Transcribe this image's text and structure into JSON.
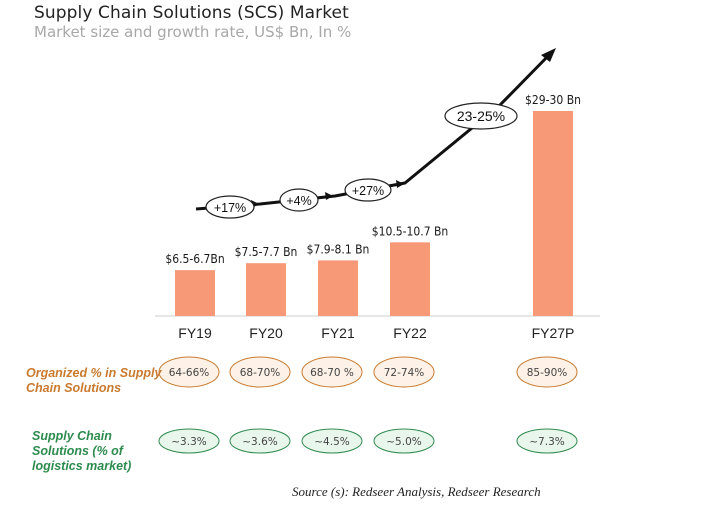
{
  "header": {
    "title": "Supply Chain Solutions (SCS) Market",
    "subtitle": "Market size and growth rate, US$ Bn, In %"
  },
  "chart_data": {
    "type": "bar",
    "categories": [
      "FY19",
      "FY20",
      "FY21",
      "FY22",
      "FY27P"
    ],
    "values": [
      6.6,
      7.6,
      8.0,
      10.6,
      29.5
    ],
    "value_labels": [
      "$6.5-6.7Bn",
      "$7.5-7.7 Bn",
      "$7.9-8.1 Bn",
      "$10.5-10.7 Bn",
      "$29-30 Bn"
    ],
    "growth_labels": [
      "+17%",
      "+4%",
      "+27%",
      "23-25%"
    ],
    "bar_color": "#f79877",
    "grid": false
  },
  "rows": {
    "organized": {
      "label": "Organized % in Supply Chain Solutions",
      "values": [
        "64-66%",
        "68-70%",
        "68-70 %",
        "72-74%",
        "85-90%"
      ],
      "color": "#c97a2e",
      "fill": "#fdf1e8"
    },
    "logistics": {
      "label": "Supply Chain Solutions (% of logistics market)",
      "values": [
        "~3.3%",
        "~3.6%",
        "~4.5%",
        "~5.0%",
        "~7.3%"
      ],
      "color": "#2e8b4e",
      "fill": "#e9f6ec"
    }
  },
  "source": "Source (s): Redseer Analysis, Redseer Research"
}
